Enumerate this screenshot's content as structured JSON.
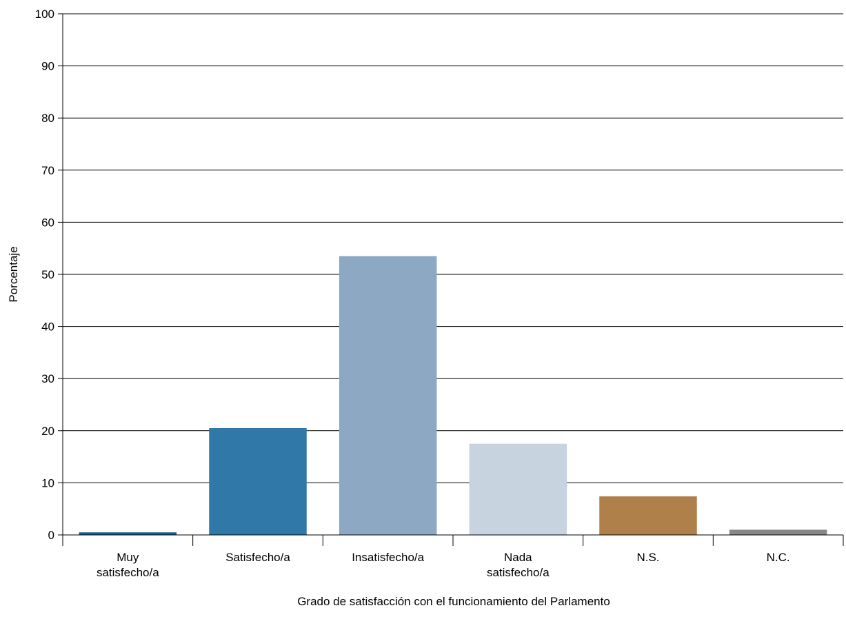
{
  "chart_data": {
    "type": "bar",
    "title": "",
    "xlabel": "Grado de satisfacción con el funcionamiento del Parlamento",
    "ylabel": "Porcentaje",
    "ylim": [
      0,
      100
    ],
    "yticks": [
      "0",
      "10",
      "20",
      "30",
      "40",
      "50",
      "60",
      "70",
      "80",
      "90",
      "100"
    ],
    "grid": true,
    "legend": "none",
    "categories": [
      [
        "Muy",
        "satisfecho/a"
      ],
      [
        "Satisfecho/a"
      ],
      [
        "Insatisfecho/a"
      ],
      [
        "Nada",
        "satisfecho/a"
      ],
      [
        "N.S."
      ],
      [
        "N.C."
      ]
    ],
    "values": [
      0.5,
      20.5,
      53.5,
      17.5,
      7.4,
      1.0
    ],
    "colors": [
      "#1f5e8c",
      "#2f78a8",
      "#8da8c2",
      "#c8d3e0",
      "#b0804a",
      "#888888"
    ]
  }
}
